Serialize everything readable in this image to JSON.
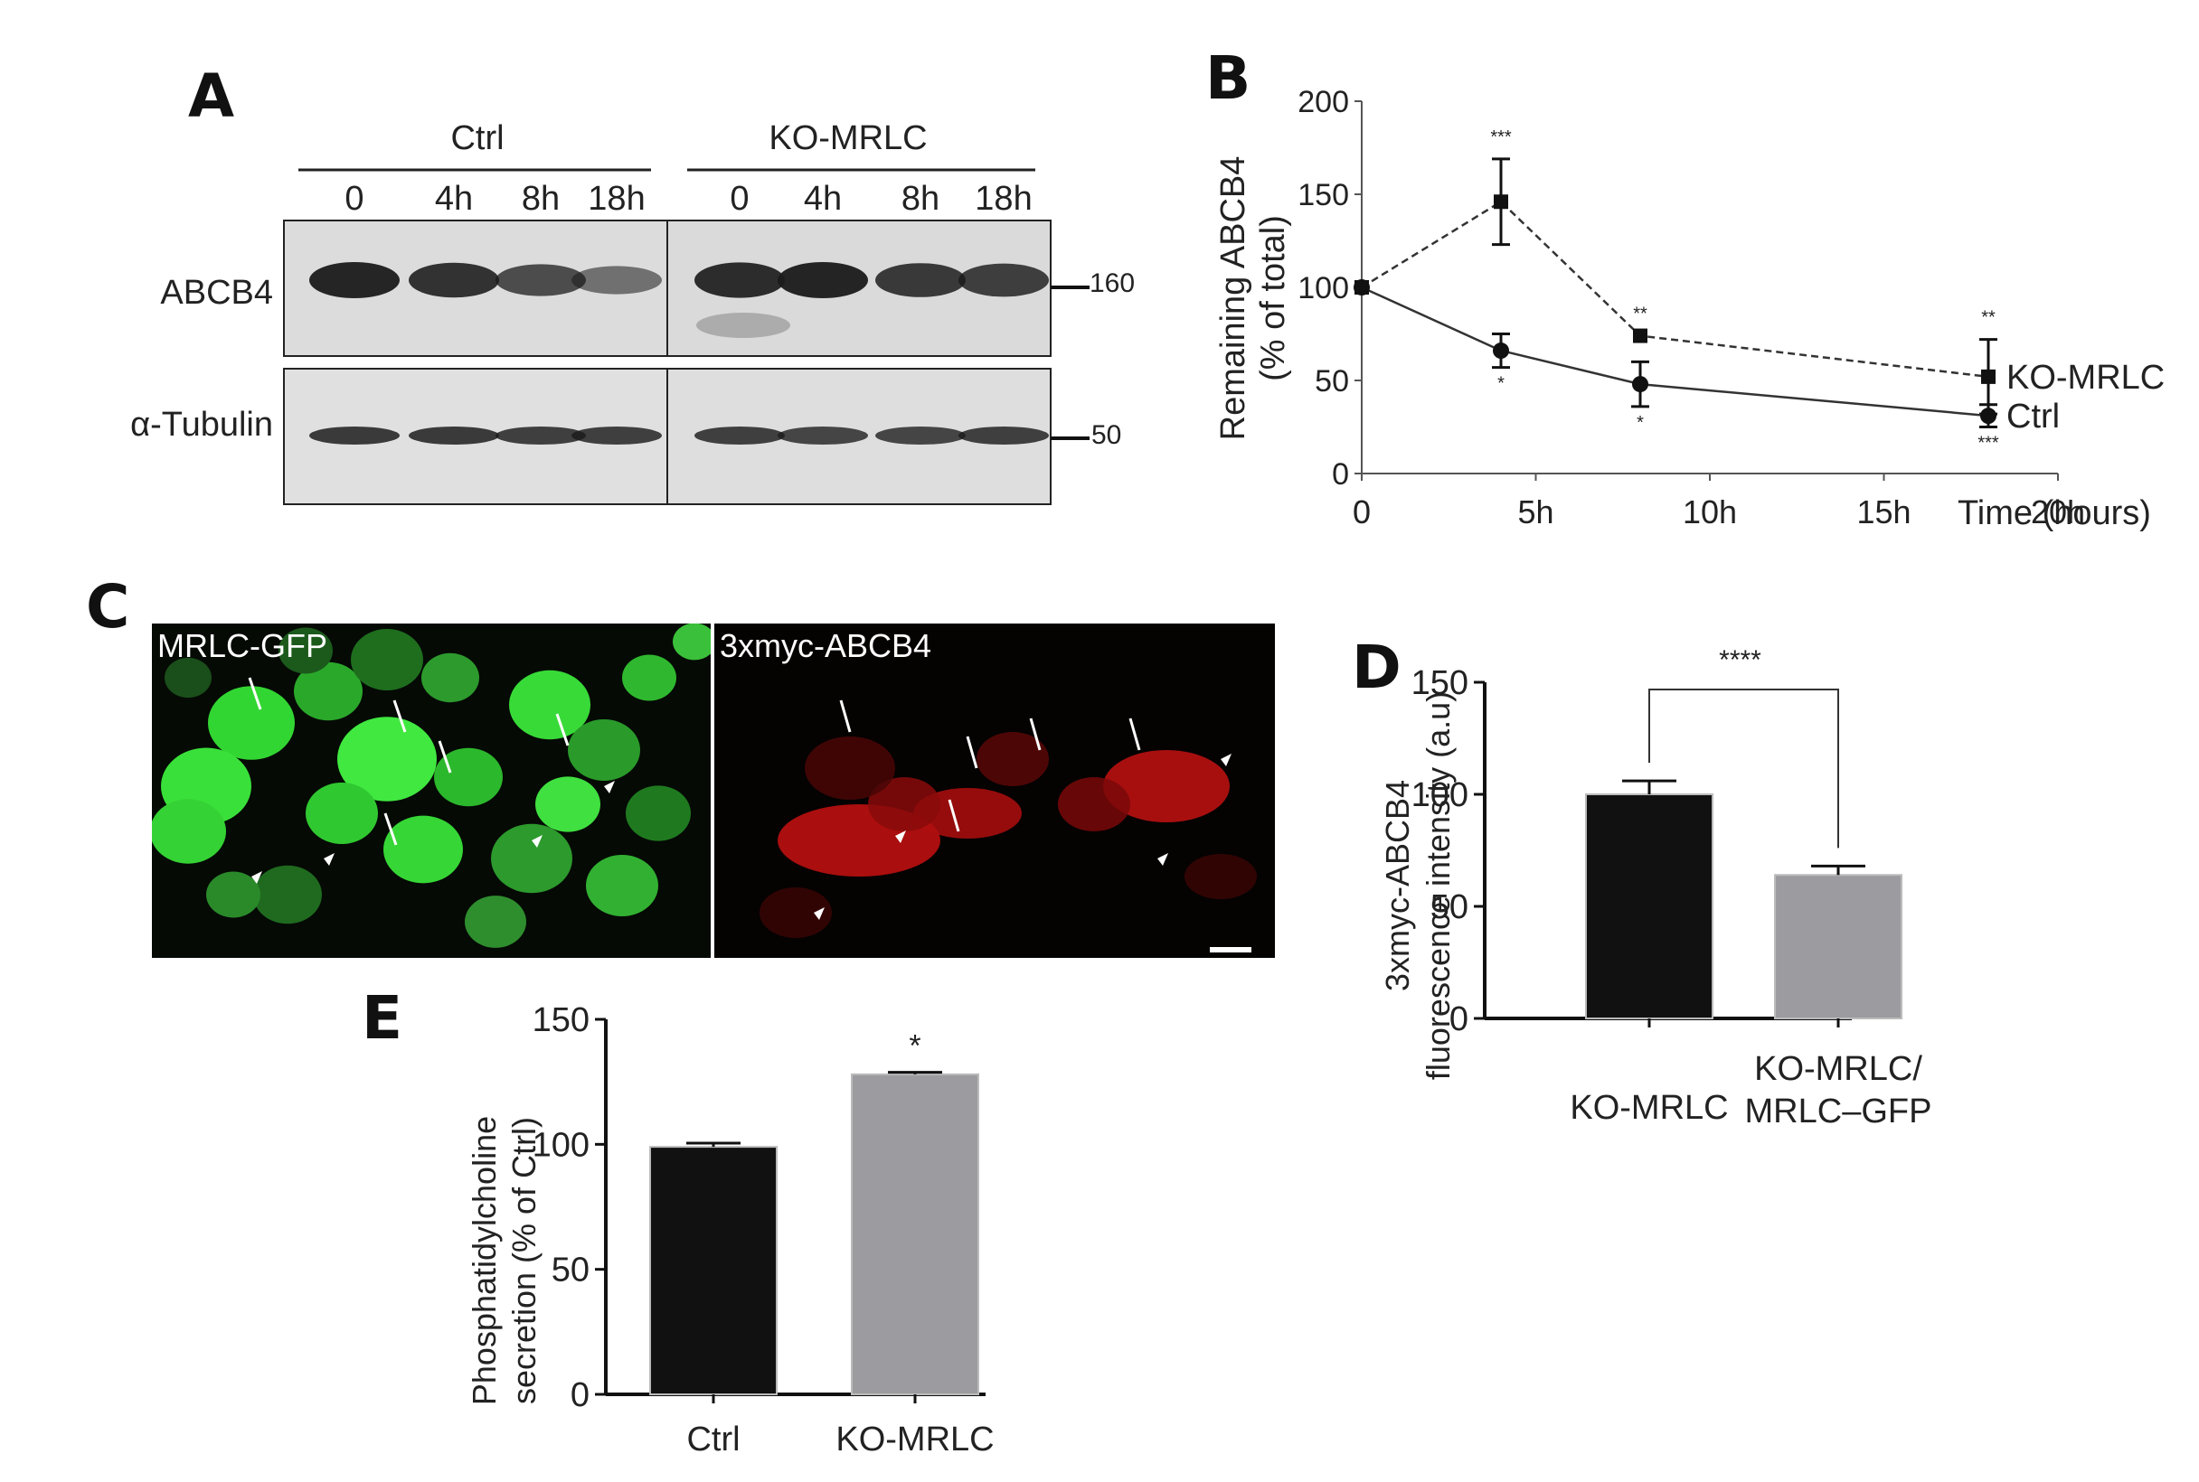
{
  "panels": {
    "A": {
      "letter": "A",
      "groups": [
        "Ctrl",
        "KO-MRLC"
      ],
      "lanes": [
        "0",
        "4h",
        "8h",
        "18h",
        "0",
        "4h",
        "8h",
        "18h"
      ],
      "rows": [
        "ABCB4",
        "α-Tubulin"
      ],
      "markers": [
        "160",
        "50"
      ],
      "band_intensity": {
        "ABCB4": [
          1.0,
          0.9,
          0.7,
          0.45,
          0.95,
          1.0,
          0.85,
          0.8
        ],
        "alpha_tubulin": [
          0.9,
          0.9,
          0.85,
          0.85,
          0.85,
          0.8,
          0.8,
          0.85
        ]
      }
    },
    "B": {
      "letter": "B",
      "xlabel": "Time (hours)",
      "ylabel_line1": "Remaining ABCB4",
      "ylabel_line2": "(% of total)"
    },
    "C": {
      "letter": "C",
      "left_label": "MRLC-GFP",
      "right_label": "3xmyc-ABCB4"
    },
    "D": {
      "letter": "D",
      "ylabel_line1": "3xmyc-ABCB4",
      "ylabel_line2": "fluorescence intensity (a.u)",
      "significance": "****",
      "cat1": "KO-MRLC",
      "cat2_line1": "KO-MRLC/",
      "cat2_line2": "MRLC–GFP"
    },
    "E": {
      "letter": "E",
      "ylabel_line1": "Phosphatidylcholine",
      "ylabel_line2": "secretion (% of Ctrl)",
      "significance": "*"
    }
  },
  "chart_data": [
    {
      "id": "B",
      "type": "line",
      "x": [
        0,
        4,
        8,
        18
      ],
      "xticks": [
        "0",
        "5h",
        "10h",
        "15h",
        "20h"
      ],
      "xtick_values": [
        0,
        5,
        10,
        15,
        20
      ],
      "yticks": [
        "0",
        "50",
        "100",
        "150",
        "200"
      ],
      "ylim": [
        0,
        200
      ],
      "xlim": [
        0,
        20
      ],
      "xlabel": "Time (hours)",
      "ylabel": "Remaining ABCB4 (% of total)",
      "series": [
        {
          "name": "KO-MRLC",
          "values": [
            100,
            146,
            74,
            52
          ],
          "errors": [
            0,
            23,
            0,
            20
          ],
          "significance": [
            "",
            "***",
            "**",
            "**"
          ],
          "style": "dashed",
          "marker": "square"
        },
        {
          "name": "Ctrl",
          "values": [
            100,
            66,
            48,
            31
          ],
          "errors": [
            0,
            9,
            12,
            6
          ],
          "significance": [
            "",
            "*",
            "*",
            "***"
          ],
          "style": "solid",
          "marker": "circle"
        }
      ]
    },
    {
      "id": "D",
      "type": "bar",
      "categories": [
        "KO-MRLC",
        "KO-MRLC/ MRLC–GFP"
      ],
      "values": [
        100,
        64
      ],
      "errors": [
        6,
        4
      ],
      "colors": [
        "#111111",
        "#9c9ca0"
      ],
      "yticks": [
        "0",
        "50",
        "100",
        "150"
      ],
      "ylim": [
        0,
        150
      ],
      "ylabel": "3xmyc-ABCB4 fluorescence intensity (a.u)",
      "significance": "****"
    },
    {
      "id": "E",
      "type": "bar",
      "categories": [
        "Ctrl",
        "KO-MRLC"
      ],
      "values": [
        99,
        128
      ],
      "errors": [
        1.5,
        0.8
      ],
      "colors": [
        "#111111",
        "#9c9ca0"
      ],
      "yticks": [
        "0",
        "50",
        "100",
        "150"
      ],
      "ylim": [
        0,
        150
      ],
      "ylabel": "Phosphatidylcholine secretion (% of Ctrl)",
      "significance": "*"
    }
  ]
}
